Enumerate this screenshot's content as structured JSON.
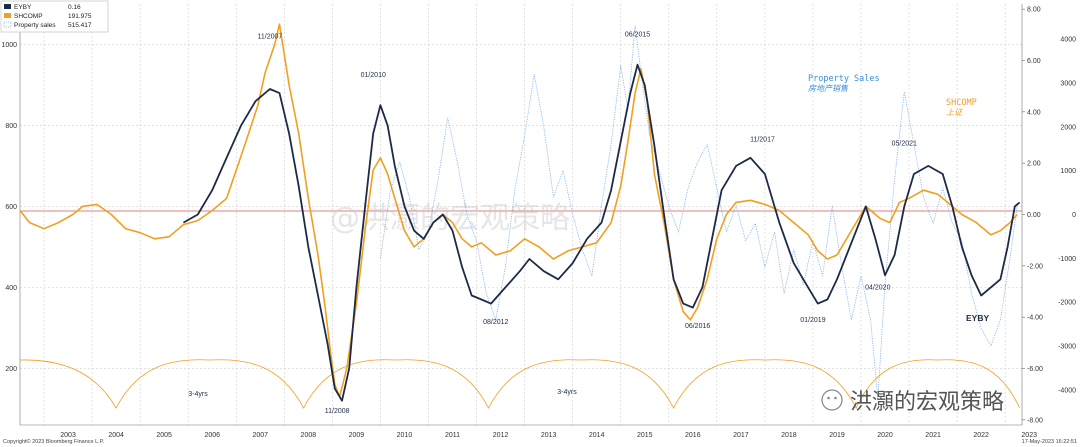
{
  "chart_data": {
    "type": "line",
    "title": "",
    "xlabel": "",
    "ylabel": "",
    "x_ticks": [
      "2003",
      "2004",
      "2005",
      "2006",
      "2007",
      "2008",
      "2009",
      "2010",
      "2011",
      "2012",
      "2013",
      "2014",
      "2015",
      "2016",
      "2017",
      "2018",
      "2019",
      "2020",
      "2021",
      "2022",
      "2023"
    ],
    "x_range": [
      2002.5,
      2023.35
    ],
    "y_left": {
      "ticks": [
        "200",
        "400",
        "600",
        "800",
        "1000"
      ],
      "range": [
        60,
        1100
      ]
    },
    "y_right": {
      "ticks": [
        "-8.00",
        "-6.00",
        "-4.00",
        "-2.00",
        "0.00",
        "2.00",
        "4.00",
        "6.00",
        "8.00"
      ],
      "range": [
        -8.2,
        8.2
      ]
    },
    "y_right_outer": {
      "ticks": [
        "-4000",
        "-3000",
        "-2000",
        "-1000",
        "0",
        "1000",
        "2000",
        "3000",
        "4000"
      ],
      "range": [
        -4800,
        4800
      ]
    },
    "legend": [
      {
        "name": "EYBY",
        "value": "0.16",
        "color": "#1c2a48",
        "style": "solid"
      },
      {
        "name": "SHCOMP",
        "value": "191.975",
        "color": "#f0a020",
        "style": "solid"
      },
      {
        "name": "Property sales",
        "value": "515.417",
        "color": "#7fb2e6",
        "style": "dotted"
      }
    ],
    "series": [
      {
        "name": "SHCOMP",
        "axis": "left",
        "color": "#f0a020",
        "points": [
          [
            2002.5,
            590
          ],
          [
            2002.7,
            560
          ],
          [
            2003.0,
            545
          ],
          [
            2003.3,
            560
          ],
          [
            2003.6,
            580
          ],
          [
            2003.8,
            600
          ],
          [
            2004.1,
            605
          ],
          [
            2004.4,
            580
          ],
          [
            2004.7,
            545
          ],
          [
            2005.0,
            535
          ],
          [
            2005.3,
            520
          ],
          [
            2005.6,
            525
          ],
          [
            2005.9,
            555
          ],
          [
            2006.2,
            565
          ],
          [
            2006.5,
            590
          ],
          [
            2006.8,
            620
          ],
          [
            2007.0,
            690
          ],
          [
            2007.2,
            760
          ],
          [
            2007.45,
            850
          ],
          [
            2007.6,
            930
          ],
          [
            2007.8,
            1000
          ],
          [
            2007.9,
            1050
          ],
          [
            2008.1,
            900
          ],
          [
            2008.3,
            780
          ],
          [
            2008.5,
            620
          ],
          [
            2008.7,
            480
          ],
          [
            2008.85,
            350
          ],
          [
            2008.95,
            250
          ],
          [
            2009.05,
            160
          ],
          [
            2009.15,
            130
          ],
          [
            2009.3,
            200
          ],
          [
            2009.5,
            360
          ],
          [
            2009.7,
            560
          ],
          [
            2009.85,
            690
          ],
          [
            2010.0,
            720
          ],
          [
            2010.15,
            680
          ],
          [
            2010.3,
            620
          ],
          [
            2010.5,
            540
          ],
          [
            2010.7,
            500
          ],
          [
            2010.9,
            520
          ],
          [
            2011.1,
            560
          ],
          [
            2011.3,
            580
          ],
          [
            2011.5,
            560
          ],
          [
            2011.7,
            520
          ],
          [
            2011.9,
            500
          ],
          [
            2012.1,
            510
          ],
          [
            2012.4,
            480
          ],
          [
            2012.7,
            490
          ],
          [
            2013.0,
            520
          ],
          [
            2013.3,
            500
          ],
          [
            2013.6,
            470
          ],
          [
            2013.9,
            490
          ],
          [
            2014.2,
            500
          ],
          [
            2014.5,
            510
          ],
          [
            2014.8,
            560
          ],
          [
            2015.0,
            650
          ],
          [
            2015.15,
            760
          ],
          [
            2015.3,
            880
          ],
          [
            2015.42,
            940
          ],
          [
            2015.55,
            860
          ],
          [
            2015.7,
            680
          ],
          [
            2015.9,
            560
          ],
          [
            2016.1,
            420
          ],
          [
            2016.3,
            340
          ],
          [
            2016.45,
            320
          ],
          [
            2016.6,
            350
          ],
          [
            2016.8,
            420
          ],
          [
            2017.0,
            520
          ],
          [
            2017.2,
            580
          ],
          [
            2017.4,
            610
          ],
          [
            2017.7,
            615
          ],
          [
            2018.0,
            605
          ],
          [
            2018.3,
            590
          ],
          [
            2018.6,
            560
          ],
          [
            2018.9,
            530
          ],
          [
            2019.1,
            490
          ],
          [
            2019.3,
            470
          ],
          [
            2019.5,
            480
          ],
          [
            2019.7,
            520
          ],
          [
            2019.9,
            560
          ],
          [
            2020.1,
            600
          ],
          [
            2020.4,
            570
          ],
          [
            2020.6,
            560
          ],
          [
            2020.8,
            610
          ],
          [
            2021.0,
            620
          ],
          [
            2021.3,
            640
          ],
          [
            2021.6,
            630
          ],
          [
            2021.9,
            600
          ],
          [
            2022.1,
            580
          ],
          [
            2022.4,
            560
          ],
          [
            2022.7,
            530
          ],
          [
            2022.9,
            540
          ],
          [
            2023.1,
            560
          ],
          [
            2023.25,
            580
          ]
        ]
      },
      {
        "name": "EYBY",
        "axis": "left",
        "color": "#1c2a48",
        "points": [
          [
            2005.9,
            560
          ],
          [
            2006.2,
            580
          ],
          [
            2006.5,
            640
          ],
          [
            2006.8,
            720
          ],
          [
            2007.1,
            800
          ],
          [
            2007.4,
            860
          ],
          [
            2007.7,
            890
          ],
          [
            2007.9,
            880
          ],
          [
            2008.1,
            780
          ],
          [
            2008.3,
            650
          ],
          [
            2008.5,
            500
          ],
          [
            2008.7,
            380
          ],
          [
            2008.9,
            260
          ],
          [
            2009.05,
            150
          ],
          [
            2009.2,
            120
          ],
          [
            2009.35,
            200
          ],
          [
            2009.5,
            400
          ],
          [
            2009.7,
            620
          ],
          [
            2009.85,
            780
          ],
          [
            2010.0,
            850
          ],
          [
            2010.15,
            800
          ],
          [
            2010.3,
            700
          ],
          [
            2010.5,
            600
          ],
          [
            2010.7,
            540
          ],
          [
            2010.9,
            520
          ],
          [
            2011.1,
            560
          ],
          [
            2011.3,
            580
          ],
          [
            2011.5,
            540
          ],
          [
            2011.7,
            450
          ],
          [
            2011.9,
            380
          ],
          [
            2012.1,
            370
          ],
          [
            2012.3,
            360
          ],
          [
            2012.6,
            400
          ],
          [
            2012.9,
            440
          ],
          [
            2013.1,
            470
          ],
          [
            2013.4,
            440
          ],
          [
            2013.7,
            420
          ],
          [
            2014.0,
            460
          ],
          [
            2014.3,
            520
          ],
          [
            2014.6,
            560
          ],
          [
            2014.8,
            640
          ],
          [
            2015.0,
            760
          ],
          [
            2015.2,
            880
          ],
          [
            2015.35,
            950
          ],
          [
            2015.5,
            900
          ],
          [
            2015.7,
            750
          ],
          [
            2015.9,
            580
          ],
          [
            2016.1,
            420
          ],
          [
            2016.3,
            360
          ],
          [
            2016.5,
            350
          ],
          [
            2016.7,
            400
          ],
          [
            2016.9,
            520
          ],
          [
            2017.1,
            640
          ],
          [
            2017.4,
            700
          ],
          [
            2017.7,
            720
          ],
          [
            2018.0,
            680
          ],
          [
            2018.3,
            560
          ],
          [
            2018.6,
            460
          ],
          [
            2018.9,
            400
          ],
          [
            2019.1,
            360
          ],
          [
            2019.3,
            370
          ],
          [
            2019.5,
            420
          ],
          [
            2019.7,
            480
          ],
          [
            2019.9,
            540
          ],
          [
            2020.1,
            600
          ],
          [
            2020.3,
            520
          ],
          [
            2020.5,
            430
          ],
          [
            2020.7,
            480
          ],
          [
            2020.9,
            600
          ],
          [
            2021.1,
            680
          ],
          [
            2021.4,
            700
          ],
          [
            2021.7,
            680
          ],
          [
            2021.9,
            600
          ],
          [
            2022.1,
            500
          ],
          [
            2022.3,
            430
          ],
          [
            2022.5,
            380
          ],
          [
            2022.7,
            400
          ],
          [
            2022.9,
            420
          ],
          [
            2023.05,
            500
          ],
          [
            2023.2,
            600
          ],
          [
            2023.3,
            610
          ]
        ]
      },
      {
        "name": "Property sales",
        "axis": "right_outer",
        "color": "#7fb2e6",
        "points": [
          [
            2010.0,
            -1000
          ],
          [
            2010.2,
            500
          ],
          [
            2010.4,
            1200
          ],
          [
            2010.6,
            400
          ],
          [
            2010.8,
            -800
          ],
          [
            2011.0,
            -400
          ],
          [
            2011.2,
            800
          ],
          [
            2011.4,
            2200
          ],
          [
            2011.6,
            1200
          ],
          [
            2011.8,
            0
          ],
          [
            2012.0,
            -600
          ],
          [
            2012.2,
            -1800
          ],
          [
            2012.4,
            -2400
          ],
          [
            2012.6,
            -1200
          ],
          [
            2012.8,
            600
          ],
          [
            2013.0,
            1800
          ],
          [
            2013.2,
            3200
          ],
          [
            2013.4,
            2000
          ],
          [
            2013.6,
            400
          ],
          [
            2013.8,
            1000
          ],
          [
            2014.0,
            0
          ],
          [
            2014.2,
            -800
          ],
          [
            2014.4,
            -1400
          ],
          [
            2014.6,
            200
          ],
          [
            2014.8,
            1600
          ],
          [
            2015.0,
            3400
          ],
          [
            2015.15,
            2400
          ],
          [
            2015.3,
            4300
          ],
          [
            2015.45,
            3000
          ],
          [
            2015.6,
            1800
          ],
          [
            2015.8,
            1000
          ],
          [
            2016.0,
            200
          ],
          [
            2016.2,
            -400
          ],
          [
            2016.4,
            600
          ],
          [
            2016.6,
            1200
          ],
          [
            2016.8,
            1600
          ],
          [
            2017.0,
            600
          ],
          [
            2017.2,
            -400
          ],
          [
            2017.4,
            200
          ],
          [
            2017.6,
            -600
          ],
          [
            2017.8,
            -200
          ],
          [
            2018.0,
            -1200
          ],
          [
            2018.2,
            -400
          ],
          [
            2018.4,
            -1800
          ],
          [
            2018.6,
            -800
          ],
          [
            2018.8,
            -1600
          ],
          [
            2019.0,
            -600
          ],
          [
            2019.2,
            -1400
          ],
          [
            2019.4,
            200
          ],
          [
            2019.6,
            -1200
          ],
          [
            2019.8,
            -2400
          ],
          [
            2020.0,
            -1400
          ],
          [
            2020.2,
            -2400
          ],
          [
            2020.35,
            -4200
          ],
          [
            2020.5,
            -1600
          ],
          [
            2020.7,
            800
          ],
          [
            2020.9,
            2800
          ],
          [
            2021.1,
            1600
          ],
          [
            2021.3,
            400
          ],
          [
            2021.5,
            -200
          ],
          [
            2021.7,
            600
          ],
          [
            2021.9,
            -200
          ],
          [
            2022.1,
            -600
          ],
          [
            2022.3,
            -1800
          ],
          [
            2022.5,
            -2600
          ],
          [
            2022.7,
            -3000
          ],
          [
            2022.9,
            -2400
          ],
          [
            2023.1,
            -1000
          ],
          [
            2023.25,
            200
          ]
        ]
      }
    ],
    "annotations": [
      {
        "text": "11/2007",
        "series": "SHCOMP"
      },
      {
        "text": "11/2008",
        "series": "SHCOMP"
      },
      {
        "text": "01/2010",
        "series": "EYBY"
      },
      {
        "text": "08/2012",
        "series": "EYBY"
      },
      {
        "text": "06/2015",
        "series": "EYBY"
      },
      {
        "text": "06/2016",
        "series": "SHCOMP"
      },
      {
        "text": "11/2017",
        "series": "EYBY"
      },
      {
        "text": "01/2019",
        "series": "EYBY"
      },
      {
        "text": "04/2020",
        "series": "EYBY"
      },
      {
        "text": "05/2021",
        "series": "EYBY"
      }
    ],
    "labels": {
      "property_en": "Property Sales",
      "property_cn": "房地产销售",
      "shcomp_en": "SHCOMP",
      "shcomp_cn": "上证",
      "eyby": "EYBY",
      "cycle_a": "3-4yrs",
      "cycle_b": "3-4yrs"
    },
    "watermark_center": "@洪灝的宏观策略",
    "watermark_bottom": "洪灝的宏观策略",
    "footer_left": "Copyright© 2023 Bloomberg Finance L.P.",
    "footer_right": "17-May-2023 16:22:51"
  }
}
